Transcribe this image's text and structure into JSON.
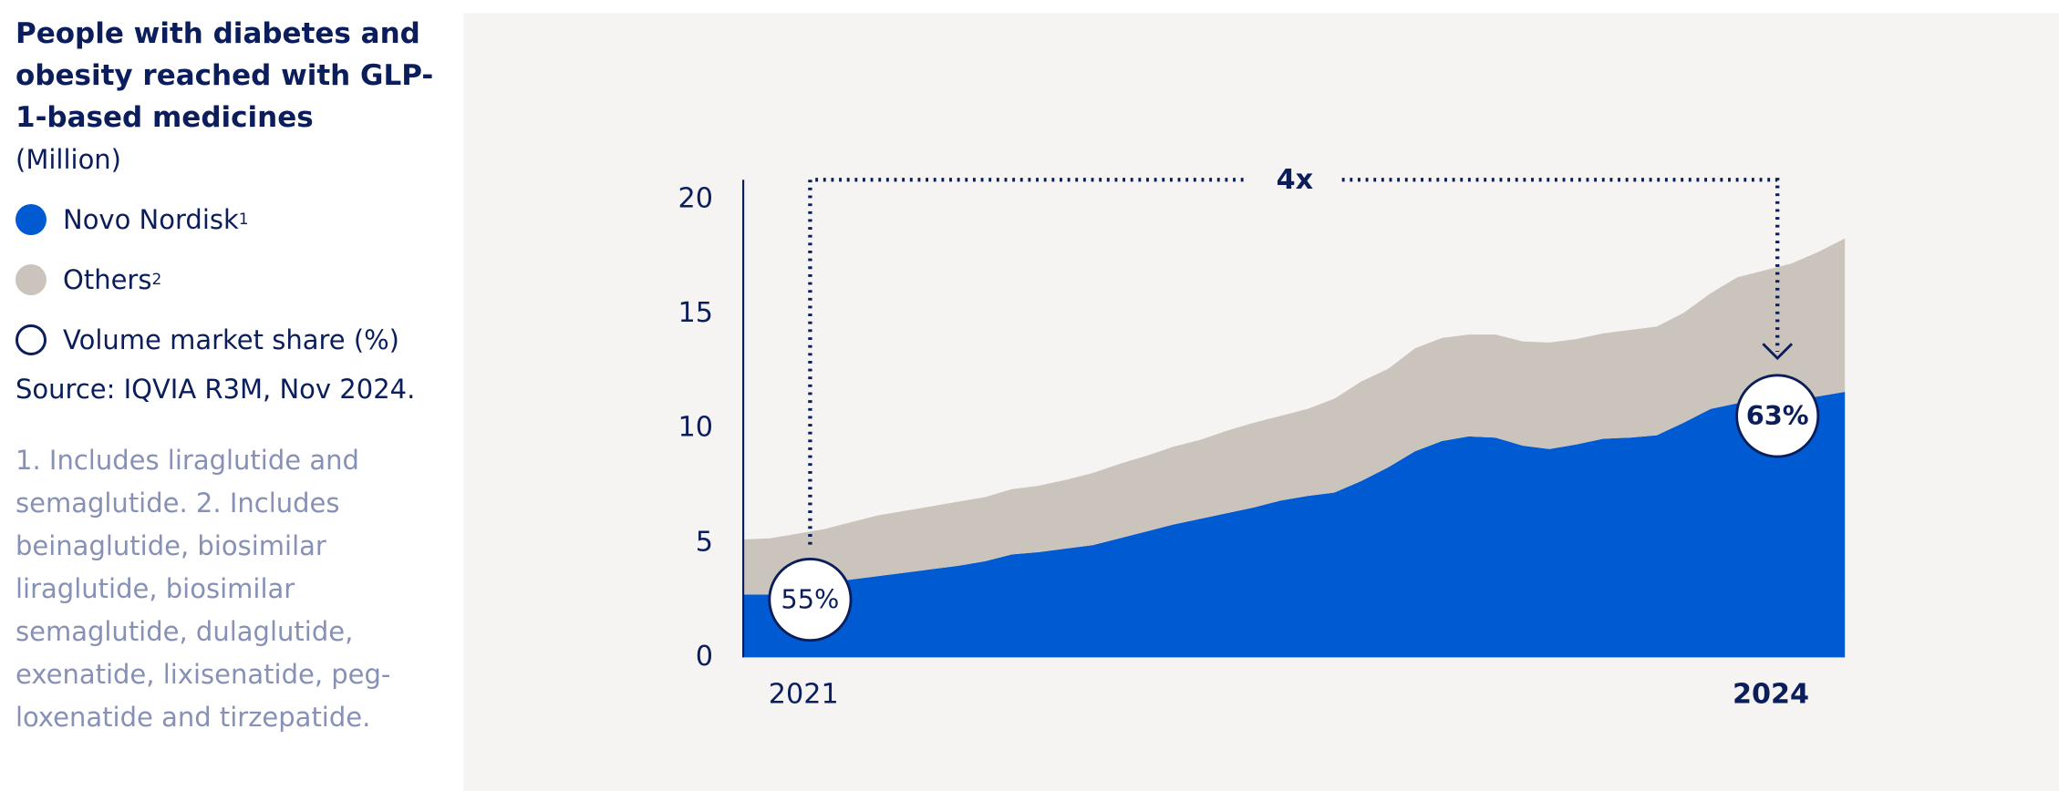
{
  "chart_data": {
    "type": "area",
    "title": "People with diabetes and obesity reached with GLP-1-based medicines",
    "unit": "(Million)",
    "source": "Source: IQVIA R3M, Nov 2024.",
    "footnote": "1. Includes liraglutide and semaglutide.  2. Includes beinaglutide, biosimilar liraglutide, biosimilar semaglutide, dulaglutide, exenatide, lixisenatide, peg-loxenatide and tirzepatide.",
    "share_legend": "Volume market share (%)",
    "categories": [
      null,
      null,
      "2021",
      null,
      null,
      null,
      null,
      null,
      null,
      null,
      null,
      null,
      null,
      null,
      null,
      null,
      null,
      null,
      null,
      null,
      null,
      null,
      null,
      null,
      null,
      null,
      null,
      null,
      null,
      null,
      null,
      null,
      null,
      null,
      null,
      null,
      null,
      null,
      "2024",
      null,
      null,
      null
    ],
    "series": [
      {
        "name": "Novo Nordisk",
        "note": "1",
        "color": "#005ad2",
        "values": [
          2.75,
          2.75,
          3.0,
          3.25,
          3.4,
          3.55,
          3.7,
          3.85,
          4.0,
          4.2,
          4.5,
          4.6,
          4.75,
          4.9,
          5.2,
          5.5,
          5.8,
          6.05,
          6.3,
          6.55,
          6.85,
          7.05,
          7.2,
          7.7,
          8.3,
          9.0,
          9.45,
          9.65,
          9.6,
          9.25,
          9.1,
          9.3,
          9.55,
          9.6,
          9.7,
          10.25,
          10.85,
          11.1,
          11.2,
          11.25,
          11.4,
          11.6
        ]
      },
      {
        "name": "Others",
        "note": "2",
        "color": "#cbc4bd",
        "values": [
          2.4,
          2.45,
          2.4,
          2.35,
          2.5,
          2.65,
          2.7,
          2.75,
          2.8,
          2.8,
          2.85,
          2.9,
          3.0,
          3.15,
          3.25,
          3.3,
          3.4,
          3.45,
          3.6,
          3.7,
          3.7,
          3.8,
          4.1,
          4.35,
          4.3,
          4.5,
          4.5,
          4.45,
          4.5,
          4.55,
          4.65,
          4.6,
          4.6,
          4.7,
          4.75,
          4.8,
          5.05,
          5.5,
          5.7,
          5.95,
          6.3,
          6.7
        ]
      }
    ],
    "annotations": [
      {
        "text": "55%",
        "category": "2021"
      },
      {
        "text": "63%",
        "category": "2024"
      }
    ],
    "growth_label": "4x",
    "ylim": [
      0,
      20.5
    ],
    "yticks": [
      0,
      5,
      10,
      15,
      20
    ],
    "grid": false
  }
}
